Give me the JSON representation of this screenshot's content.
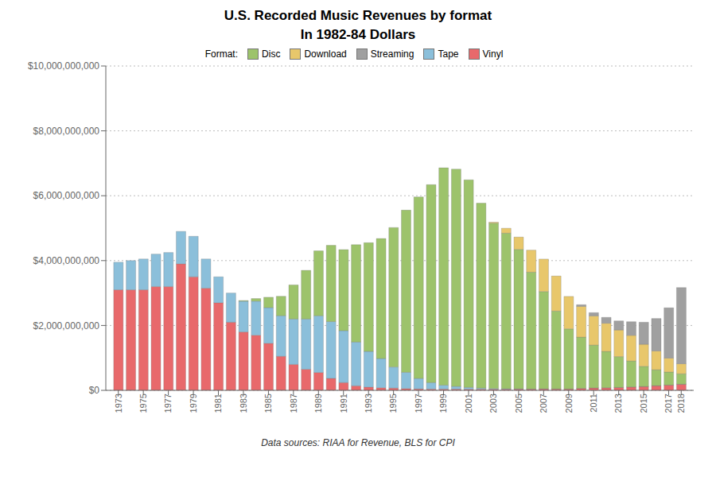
{
  "chart_data": {
    "type": "bar",
    "title": "U.S. Recorded Music Revenues by format",
    "subtitle": "In 1982-84 Dollars",
    "annotations": [
      "Data sources: RIAA for Revenue, BLS for CPI"
    ],
    "legend_title": "Format:",
    "stacked": true,
    "grid": true,
    "legend": "top",
    "x": [
      1973,
      1974,
      1975,
      1976,
      1977,
      1978,
      1979,
      1980,
      1981,
      1982,
      1983,
      1984,
      1985,
      1986,
      1987,
      1988,
      1989,
      1990,
      1991,
      1992,
      1993,
      1994,
      1995,
      1996,
      1997,
      1998,
      1999,
      2000,
      2001,
      2002,
      2003,
      2004,
      2005,
      2006,
      2007,
      2008,
      2009,
      2010,
      2011,
      2012,
      2013,
      2014,
      2015,
      2016,
      2017,
      2018
    ],
    "series": [
      {
        "name": "Vinyl",
        "color": "#e8696b",
        "values": [
          3100000000,
          3100000000,
          3100000000,
          3200000000,
          3200000000,
          3900000000,
          3500000000,
          3150000000,
          2700000000,
          2100000000,
          1800000000,
          1700000000,
          1450000000,
          1050000000,
          800000000,
          650000000,
          550000000,
          370000000,
          240000000,
          140000000,
          100000000,
          80000000,
          70000000,
          55000000,
          45000000,
          40000000,
          40000000,
          40000000,
          35000000,
          35000000,
          35000000,
          35000000,
          40000000,
          40000000,
          45000000,
          45000000,
          45000000,
          60000000,
          75000000,
          80000000,
          90000000,
          105000000,
          120000000,
          145000000,
          165000000,
          190000000
        ]
      },
      {
        "name": "Tape",
        "color": "#8bbfda",
        "values": [
          850000000,
          900000000,
          950000000,
          1000000000,
          1050000000,
          1000000000,
          1250000000,
          900000000,
          800000000,
          900000000,
          950000000,
          1050000000,
          1100000000,
          1250000000,
          1400000000,
          1550000000,
          1750000000,
          1750000000,
          1600000000,
          1350000000,
          1100000000,
          900000000,
          650000000,
          500000000,
          320000000,
          200000000,
          120000000,
          80000000,
          55000000,
          35000000,
          20000000,
          12000000,
          6000000,
          3000000,
          1500000,
          800000,
          400000,
          200000,
          100000,
          50000,
          30000,
          20000,
          10000,
          5000,
          3000,
          1000
        ]
      },
      {
        "name": "Disc",
        "color": "#9dc36b",
        "values": [
          0,
          0,
          0,
          0,
          0,
          0,
          0,
          0,
          0,
          0,
          20000000,
          80000000,
          320000000,
          600000000,
          1050000000,
          1500000000,
          2000000000,
          2350000000,
          2500000000,
          3000000000,
          3350000000,
          3700000000,
          4300000000,
          5000000000,
          5600000000,
          6100000000,
          6700000000,
          6700000000,
          6400000000,
          5700000000,
          5100000000,
          4800000000,
          4300000000,
          3600000000,
          3000000000,
          2400000000,
          1850000000,
          1580000000,
          1320000000,
          1120000000,
          950000000,
          800000000,
          620000000,
          490000000,
          400000000,
          320000000
        ]
      },
      {
        "name": "Download",
        "color": "#e8c76b",
        "values": [
          0,
          0,
          0,
          0,
          0,
          0,
          0,
          0,
          0,
          0,
          0,
          0,
          0,
          0,
          0,
          0,
          0,
          0,
          0,
          0,
          0,
          0,
          0,
          0,
          0,
          0,
          0,
          0,
          0,
          0,
          30000000,
          150000000,
          380000000,
          680000000,
          1000000000,
          1080000000,
          1000000000,
          950000000,
          900000000,
          870000000,
          820000000,
          790000000,
          680000000,
          580000000,
          430000000,
          310000000
        ]
      },
      {
        "name": "Streaming",
        "color": "#a0a0a0",
        "values": [
          0,
          0,
          0,
          0,
          0,
          0,
          0,
          0,
          0,
          0,
          0,
          0,
          0,
          0,
          0,
          0,
          0,
          0,
          0,
          0,
          0,
          0,
          0,
          0,
          0,
          0,
          0,
          0,
          0,
          0,
          0,
          0,
          0,
          0,
          0,
          0,
          0,
          50000000,
          100000000,
          180000000,
          280000000,
          420000000,
          680000000,
          1000000000,
          1550000000,
          2350000000
        ]
      }
    ],
    "ylim": [
      0,
      10000000000
    ],
    "yticks": [
      {
        "value": 0,
        "label": "$0"
      },
      {
        "value": 2000000000,
        "label": "$2,000,000,000"
      },
      {
        "value": 4000000000,
        "label": "$4,000,000,000"
      },
      {
        "value": 6000000000,
        "label": "$6,000,000,000"
      },
      {
        "value": 8000000000,
        "label": "$8,000,000,000"
      },
      {
        "value": 10000000000,
        "label": "$10,000,000,000"
      }
    ],
    "xlim": [
      1972,
      2019
    ],
    "xticks": [
      1973,
      1975,
      1977,
      1979,
      1981,
      1983,
      1985,
      1987,
      1989,
      1991,
      1993,
      1995,
      1997,
      1999,
      2001,
      2003,
      2005,
      2007,
      2009,
      2011,
      2013,
      2015,
      2017,
      2018
    ]
  }
}
